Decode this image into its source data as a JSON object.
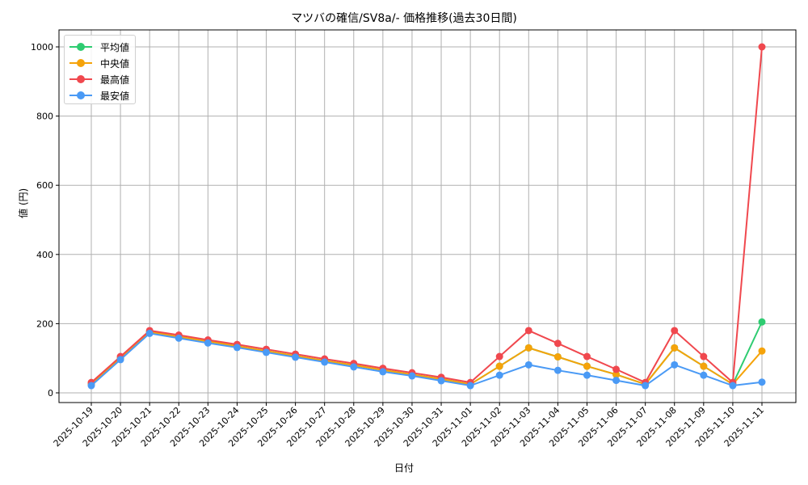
{
  "chart_data": {
    "type": "line",
    "title": "マツバの確信/SV8a/- 価格推移(過去30日間)",
    "xlabel": "日付",
    "ylabel": "値 (円)",
    "ylim": [
      -25,
      1050
    ],
    "yticks": [
      0,
      200,
      400,
      600,
      800,
      1000
    ],
    "grid": true,
    "legend_position": "upper left",
    "x": [
      "2025-10-19",
      "2025-10-20",
      "2025-10-21",
      "2025-10-22",
      "2025-10-23",
      "2025-10-24",
      "2025-10-25",
      "2025-10-26",
      "2025-10-27",
      "2025-10-28",
      "2025-10-29",
      "2025-10-30",
      "2025-10-31",
      "2025-11-01",
      "2025-11-02",
      "2025-11-03",
      "2025-11-04",
      "2025-11-05",
      "2025-11-06",
      "2025-11-07",
      "2025-11-08",
      "2025-11-09",
      "2025-11-10",
      "2025-11-11"
    ],
    "series": [
      {
        "name": "平均値",
        "color": "#2ecc71",
        "values": [
          25,
          100,
          176,
          162,
          149,
          135,
          121,
          107,
          93,
          80,
          66,
          53,
          40,
          25,
          77,
          130,
          104,
          77,
          53,
          25,
          130,
          77,
          25,
          205
        ]
      },
      {
        "name": "中央値",
        "color": "#f5a30a",
        "values": [
          25,
          100,
          176,
          162,
          149,
          135,
          121,
          107,
          93,
          80,
          66,
          53,
          40,
          25,
          77,
          130,
          104,
          77,
          53,
          25,
          130,
          77,
          25,
          121
        ]
      },
      {
        "name": "最高値",
        "color": "#f0484e",
        "values": [
          30,
          105,
          180,
          167,
          153,
          140,
          126,
          112,
          98,
          85,
          71,
          58,
          45,
          30,
          105,
          180,
          143,
          105,
          68,
          30,
          180,
          105,
          30,
          1000
        ]
      },
      {
        "name": "最安値",
        "color": "#4a9af5",
        "values": [
          21,
          96,
          172,
          158,
          144,
          131,
          117,
          103,
          89,
          75,
          61,
          49,
          35,
          21,
          51,
          81,
          65,
          51,
          36,
          21,
          81,
          51,
          21,
          31
        ]
      }
    ]
  }
}
